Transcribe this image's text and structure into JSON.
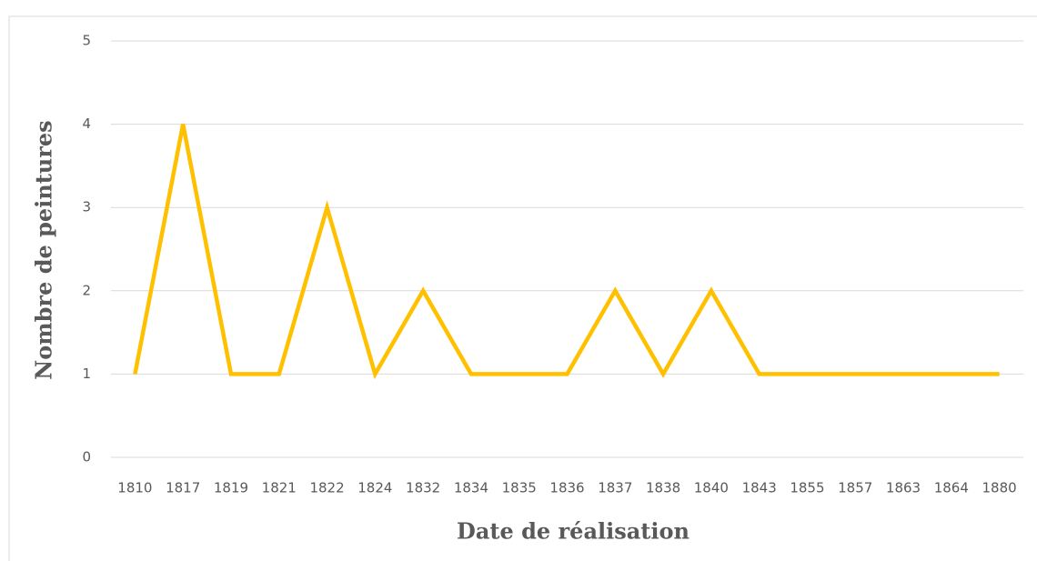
{
  "chart_data": {
    "type": "line",
    "categories": [
      "1810",
      "1817",
      "1819",
      "1821",
      "1822",
      "1824",
      "1832",
      "1834",
      "1835",
      "1836",
      "1837",
      "1838",
      "1840",
      "1843",
      "1855",
      "1857",
      "1863",
      "1864",
      "1880"
    ],
    "series": [
      {
        "name": "Nombre de peintures",
        "color": "#ffc000",
        "values": [
          1,
          4,
          1,
          1,
          3,
          1,
          2,
          1,
          1,
          1,
          2,
          1,
          2,
          1,
          1,
          1,
          1,
          1,
          1
        ]
      }
    ],
    "xlabel": "Date de réalisation",
    "ylabel": "Nombre de peintures",
    "ylim": [
      0,
      5
    ],
    "yticks": [
      0,
      1,
      2,
      3,
      4,
      5
    ],
    "grid": true
  }
}
